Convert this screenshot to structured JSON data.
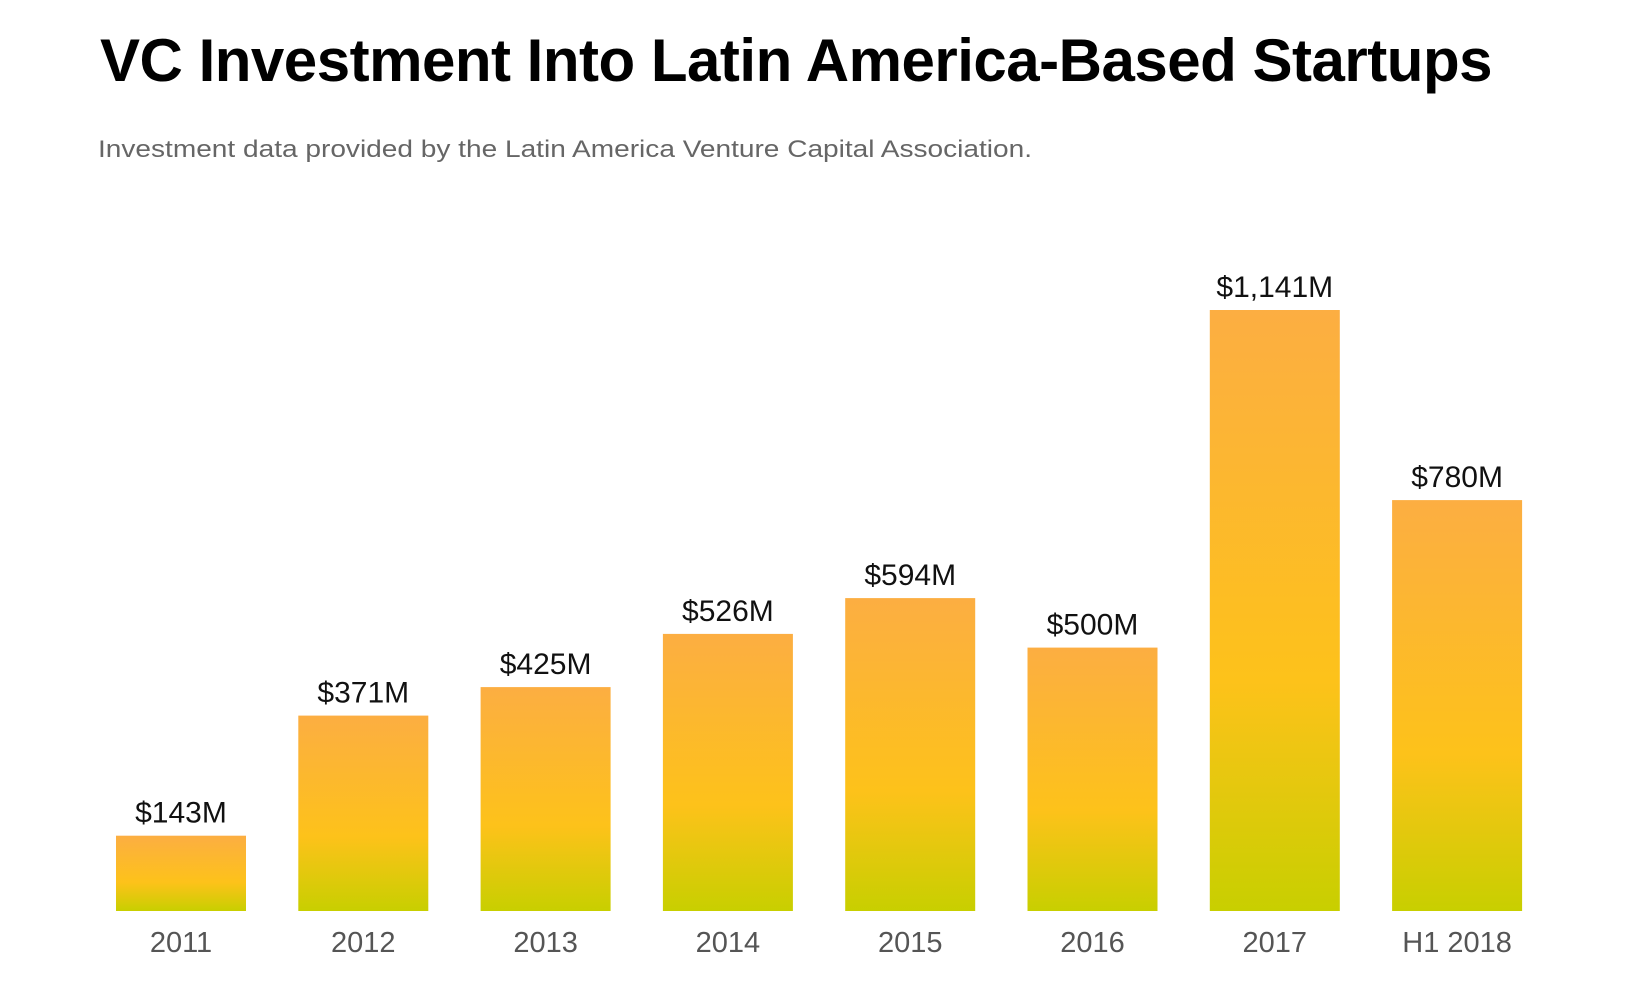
{
  "header": {
    "title": "VC Investment Into Latin America-Based Startups",
    "subtitle": "Investment data provided by the Latin America Venture Capital Association."
  },
  "colors": {
    "bar_top": "#FCAE42",
    "bar_mid": "#FDC21A",
    "bar_bottom": "#C8CF00",
    "value_label": "#111111",
    "category_label": "#555555"
  },
  "chart_data": {
    "type": "bar",
    "title": "VC Investment Into Latin America-Based Startups",
    "subtitle": "Investment data provided by the Latin America Venture Capital Association.",
    "xlabel": "",
    "ylabel": "",
    "unit": "USD millions",
    "categories": [
      "2011",
      "2012",
      "2013",
      "2014",
      "2015",
      "2016",
      "2017",
      "H1 2018"
    ],
    "values": [
      143,
      371,
      425,
      526,
      594,
      500,
      1141,
      780
    ],
    "value_labels": [
      "$143M",
      "$371M",
      "$425M",
      "$526M",
      "$594M",
      "$500M",
      "$1,141M",
      "$780M"
    ],
    "ylim": [
      0,
      1141
    ],
    "grid": false,
    "legend": "none",
    "y_axis_visible": false
  }
}
